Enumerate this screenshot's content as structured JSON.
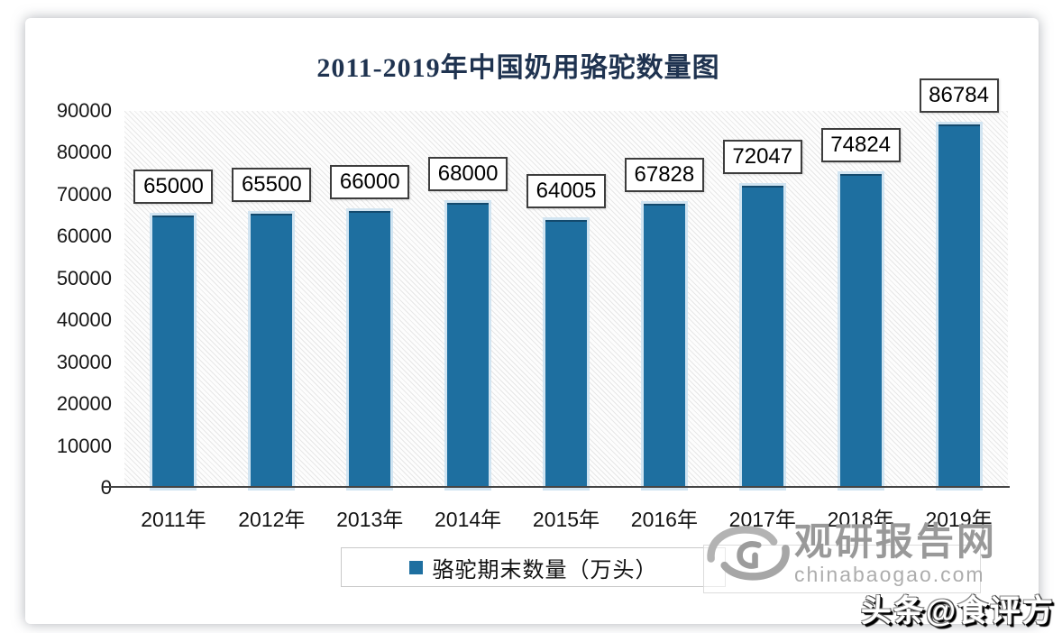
{
  "title": "2011-2019年中国奶用骆驼数量图",
  "chart_data": {
    "type": "bar",
    "title": "2011-2019年中国奶用骆驼数量图",
    "categories": [
      "2011年",
      "2012年",
      "2013年",
      "2014年",
      "2015年",
      "2016年",
      "2017年",
      "2018年",
      "2019年"
    ],
    "series": [
      {
        "name": "骆驼期末数量（万头）",
        "values": [
          65000,
          65500,
          66000,
          68000,
          64005,
          67828,
          72047,
          74824,
          86784
        ]
      }
    ],
    "data_labels": [
      65000,
      65500,
      66000,
      68000,
      64005,
      67828,
      72047,
      74824,
      86784
    ],
    "xlabel": "",
    "ylabel": "",
    "ylim": [
      0,
      90000
    ],
    "yticks": [
      0,
      10000,
      20000,
      30000,
      40000,
      50000,
      60000,
      70000,
      80000,
      90000
    ],
    "grid": false,
    "legend_position": "bottom",
    "bar_color": "#1e6fa0"
  },
  "legend": {
    "label": "骆驼期末数量（万头）",
    "marker_color": "#1e6fa0"
  },
  "watermark": {
    "site_name": "观研报告网",
    "site_url": "chinabaogao.com",
    "logo_icon": "swirl-logo-icon"
  },
  "footer_watermark": {
    "text": "头条@食评方"
  },
  "colors": {
    "bar": "#1e6fa0",
    "title": "#1f3350",
    "watermark_text": "#999999",
    "axis_line": "#454545"
  }
}
